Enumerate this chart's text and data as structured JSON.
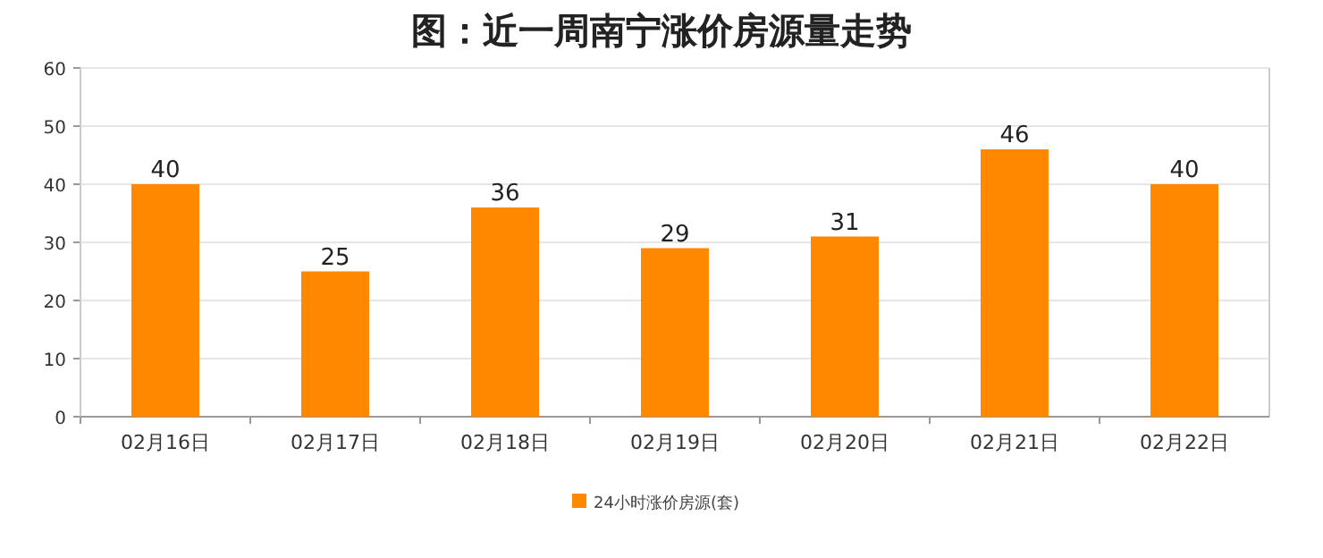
{
  "chart_data": {
    "type": "bar",
    "title": "图：近一周南宁涨价房源量走势",
    "categories": [
      "02月16日",
      "02月17日",
      "02月18日",
      "02月19日",
      "02月20日",
      "02月21日",
      "02月22日"
    ],
    "series": [
      {
        "name": "24小时涨价房源(套)",
        "color": "#ff8800",
        "values": [
          40,
          25,
          36,
          29,
          31,
          46,
          40
        ]
      }
    ],
    "ylim": [
      0,
      60
    ],
    "yticks": [
      0,
      10,
      20,
      30,
      40,
      50,
      60
    ],
    "grid": "y",
    "data_labels": true,
    "legend": "bottom"
  }
}
